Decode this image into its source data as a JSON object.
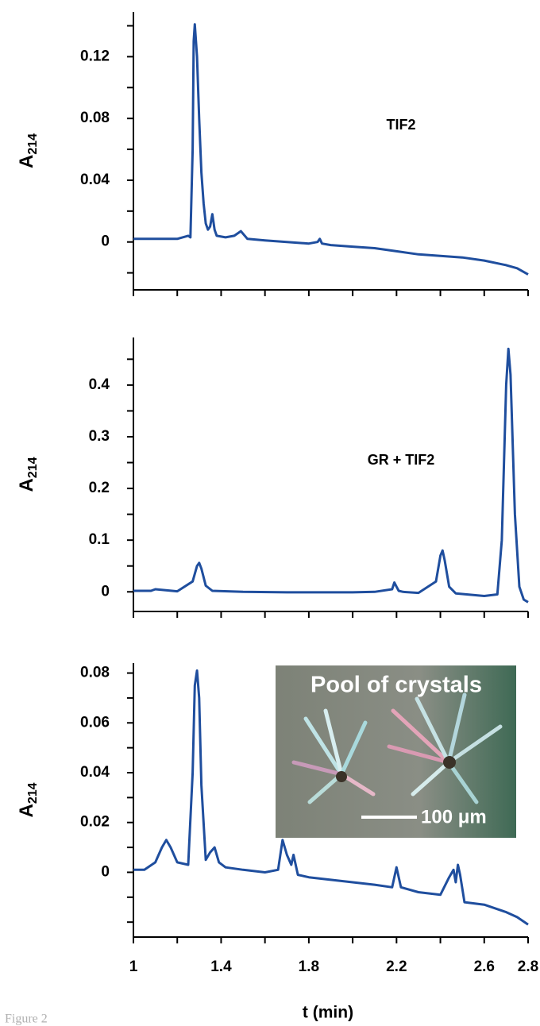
{
  "caption": "Figure 2",
  "chart_data": [
    {
      "type": "line",
      "ylabel": "A",
      "ylabel_subscript": "214",
      "annotation": "TIF2",
      "color": "#1f4e9e",
      "xlim": [
        1,
        2.8
      ],
      "minor_xticks": [
        1,
        1.2,
        1.4,
        1.6,
        1.8,
        2.0,
        2.2,
        2.4,
        2.6,
        2.8
      ],
      "ylim": [
        -0.031,
        0.149
      ],
      "yticks": [
        0,
        0.04,
        0.08,
        0.12
      ],
      "minor_yticks": [
        -0.02,
        0.02,
        0.06,
        0.1,
        0.14
      ],
      "x": [
        1.0,
        1.1,
        1.2,
        1.25,
        1.26,
        1.27,
        1.275,
        1.28,
        1.29,
        1.3,
        1.31,
        1.32,
        1.33,
        1.34,
        1.35,
        1.36,
        1.37,
        1.38,
        1.42,
        1.46,
        1.49,
        1.52,
        1.6,
        1.7,
        1.8,
        1.84,
        1.85,
        1.86,
        1.9,
        2.0,
        2.1,
        2.2,
        2.3,
        2.4,
        2.5,
        2.6,
        2.7,
        2.75,
        2.8
      ],
      "values": [
        0.002,
        0.002,
        0.002,
        0.004,
        0.003,
        0.06,
        0.13,
        0.141,
        0.12,
        0.08,
        0.045,
        0.025,
        0.012,
        0.008,
        0.01,
        0.018,
        0.008,
        0.004,
        0.003,
        0.004,
        0.007,
        0.002,
        0.001,
        0.0,
        -0.001,
        0.0,
        0.002,
        -0.001,
        -0.002,
        -0.003,
        -0.004,
        -0.006,
        -0.008,
        -0.009,
        -0.01,
        -0.012,
        -0.015,
        -0.017,
        -0.021
      ]
    },
    {
      "type": "line",
      "ylabel": "A",
      "ylabel_subscript": "214",
      "annotation": "GR + TIF2",
      "color": "#1f4e9e",
      "xlim": [
        1,
        2.8
      ],
      "minor_xticks": [
        1,
        1.2,
        1.4,
        1.6,
        1.8,
        2.0,
        2.2,
        2.4,
        2.6,
        2.8
      ],
      "ylim": [
        -0.038,
        0.492
      ],
      "yticks": [
        0,
        0.1,
        0.2,
        0.3,
        0.4
      ],
      "minor_yticks": [
        0.05,
        0.15,
        0.25,
        0.35,
        0.45
      ],
      "x": [
        1.0,
        1.08,
        1.1,
        1.2,
        1.27,
        1.29,
        1.3,
        1.31,
        1.33,
        1.36,
        1.5,
        1.7,
        1.8,
        2.0,
        2.1,
        2.18,
        2.19,
        2.2,
        2.21,
        2.23,
        2.3,
        2.38,
        2.4,
        2.41,
        2.42,
        2.44,
        2.47,
        2.6,
        2.66,
        2.68,
        2.7,
        2.71,
        2.72,
        2.74,
        2.76,
        2.78,
        2.8
      ],
      "values": [
        0.002,
        0.002,
        0.005,
        0.001,
        0.02,
        0.05,
        0.056,
        0.045,
        0.012,
        0.002,
        0.0,
        -0.001,
        -0.001,
        -0.001,
        0.0,
        0.005,
        0.018,
        0.01,
        0.002,
        0.0,
        -0.002,
        0.02,
        0.07,
        0.08,
        0.06,
        0.01,
        -0.003,
        -0.008,
        -0.005,
        0.1,
        0.4,
        0.47,
        0.42,
        0.15,
        0.01,
        -0.015,
        -0.02
      ]
    },
    {
      "type": "line",
      "ylabel": "A",
      "ylabel_subscript": "214",
      "color": "#1f4e9e",
      "inset_title": "Pool of crystals",
      "scale_bar_label": "100 μm",
      "xlabel": "t (min)",
      "xlim": [
        1,
        2.8
      ],
      "xticks": [
        1,
        1.4,
        1.8,
        2.2,
        2.6,
        2.8
      ],
      "minor_xticks": [
        1.2,
        1.6,
        2.0,
        2.4
      ],
      "ylim": [
        -0.026,
        0.084
      ],
      "yticks": [
        0,
        0.02,
        0.04,
        0.06,
        0.08
      ],
      "minor_yticks": [
        -0.02,
        -0.01,
        0.01,
        0.03,
        0.05,
        0.07
      ],
      "x": [
        1.0,
        1.05,
        1.1,
        1.13,
        1.15,
        1.17,
        1.2,
        1.25,
        1.27,
        1.28,
        1.29,
        1.3,
        1.31,
        1.33,
        1.35,
        1.37,
        1.39,
        1.42,
        1.5,
        1.6,
        1.66,
        1.68,
        1.7,
        1.72,
        1.73,
        1.75,
        1.8,
        1.9,
        2.0,
        2.1,
        2.18,
        2.2,
        2.22,
        2.3,
        2.4,
        2.44,
        2.46,
        2.47,
        2.48,
        2.49,
        2.51,
        2.6,
        2.7,
        2.75,
        2.8
      ],
      "values": [
        0.001,
        0.001,
        0.004,
        0.01,
        0.013,
        0.01,
        0.004,
        0.003,
        0.04,
        0.075,
        0.081,
        0.07,
        0.035,
        0.005,
        0.008,
        0.01,
        0.004,
        0.002,
        0.001,
        0.0,
        0.001,
        0.013,
        0.007,
        0.003,
        0.007,
        -0.001,
        -0.002,
        -0.003,
        -0.004,
        -0.005,
        -0.006,
        0.002,
        -0.006,
        -0.008,
        -0.009,
        -0.002,
        0.001,
        -0.004,
        0.003,
        -0.001,
        -0.012,
        -0.013,
        -0.016,
        -0.018,
        -0.021
      ]
    }
  ]
}
